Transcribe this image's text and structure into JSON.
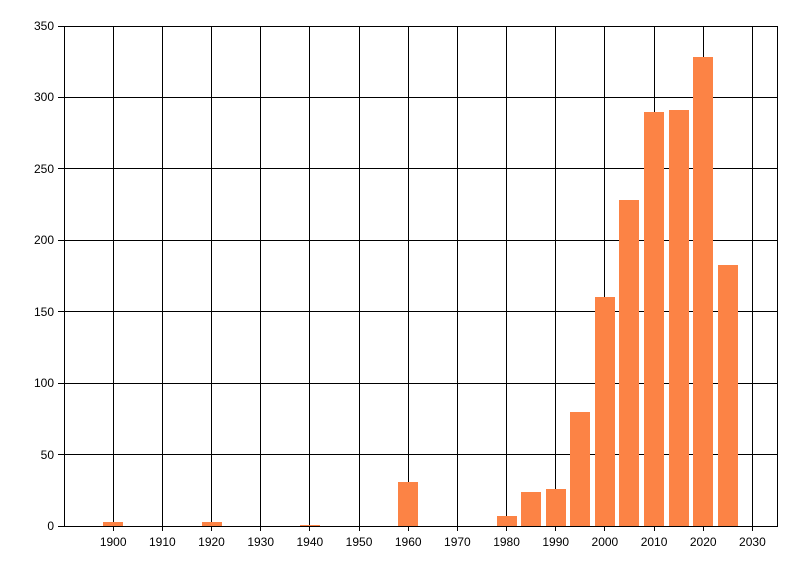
{
  "chart_data": {
    "type": "bar",
    "title": "",
    "xlabel": "",
    "ylabel": "",
    "x": [
      1900,
      1920,
      1940,
      1960,
      1980,
      1985,
      1990,
      1995,
      2000,
      2005,
      2010,
      2015,
      2020,
      2025
    ],
    "values": [
      3,
      3,
      1,
      31,
      7,
      24,
      26,
      80,
      160,
      228,
      290,
      291,
      328,
      183
    ],
    "xlim": [
      1890,
      2035
    ],
    "ylim": [
      0,
      350
    ],
    "x_ticks": [
      1900,
      1910,
      1920,
      1930,
      1940,
      1950,
      1960,
      1970,
      1980,
      1990,
      2000,
      2010,
      2020,
      2030
    ],
    "y_ticks": [
      0,
      50,
      100,
      150,
      200,
      250,
      300,
      350
    ],
    "grid": true,
    "legend": "none",
    "bar_color": "#FC8345",
    "grid_color": "#000000",
    "text_color": "#000000",
    "background_color": "#FFFFFF"
  }
}
